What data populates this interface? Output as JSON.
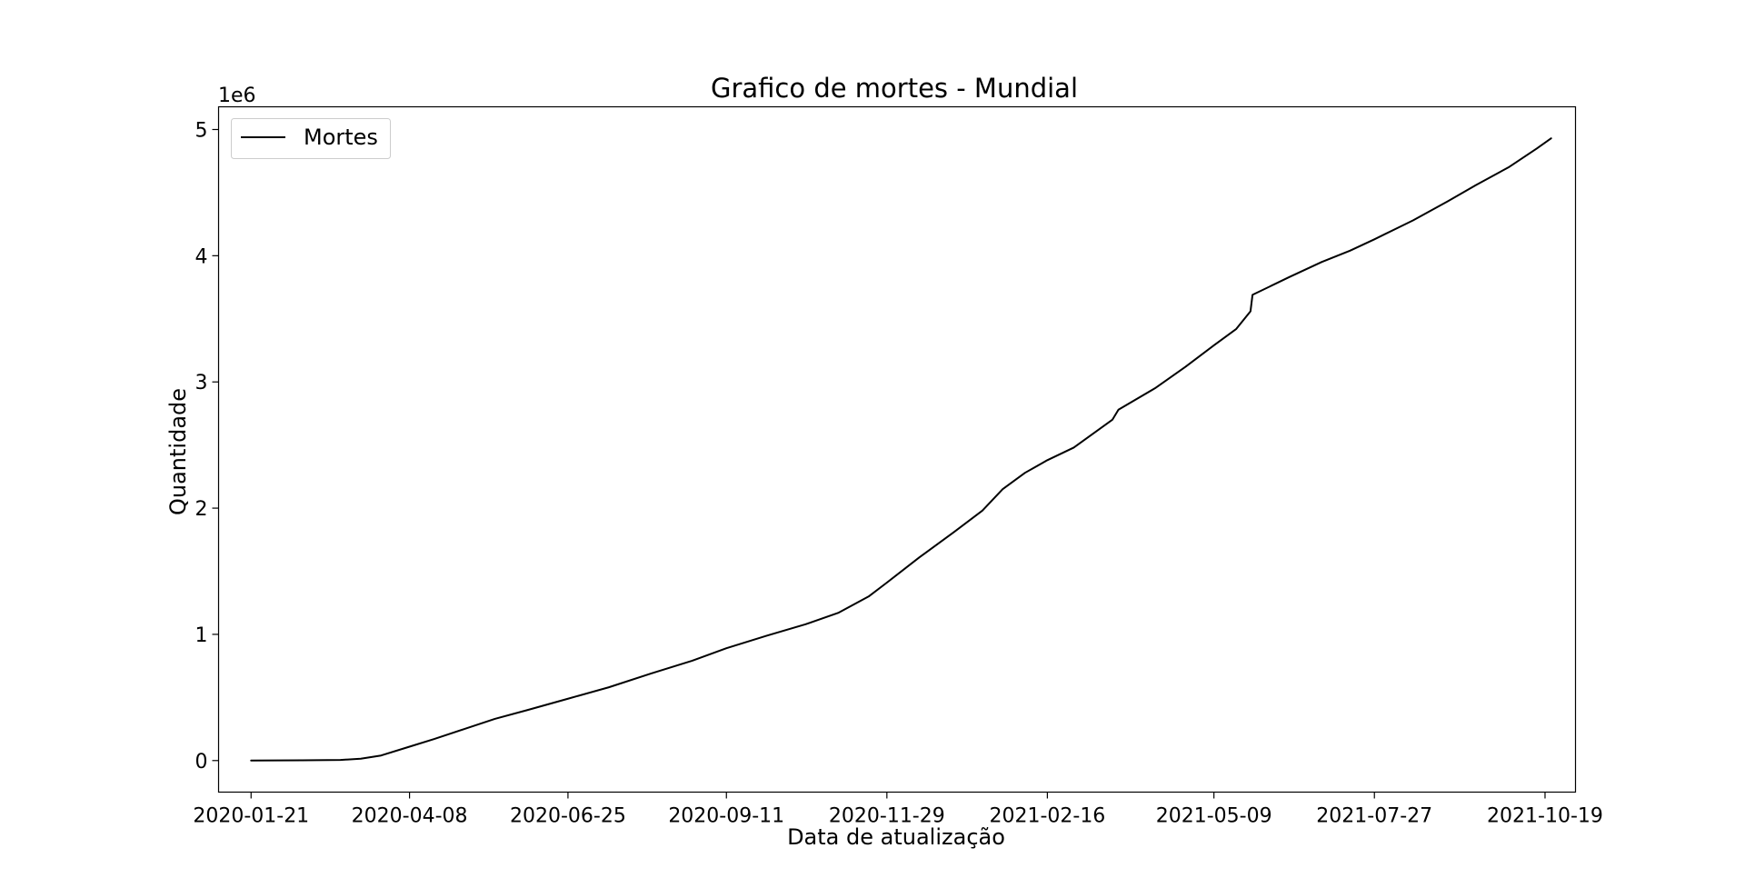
{
  "chart_data": {
    "type": "line",
    "title": "Grafico de mortes - Mundial",
    "xlabel": "Data de atualização",
    "ylabel": "Quantidade",
    "y_offset_label": "1e6",
    "x_tick_labels": [
      "2020-01-21",
      "2020-04-08",
      "2020-06-25",
      "2020-09-11",
      "2020-11-29",
      "2021-02-16",
      "2021-05-09",
      "2021-07-27",
      "2021-10-19"
    ],
    "y_tick_labels": [
      "0",
      "1",
      "2",
      "3",
      "4",
      "5"
    ],
    "y_ticks": [
      0,
      1000000,
      2000000,
      3000000,
      4000000,
      5000000
    ],
    "ylim": [
      -250000,
      5180000
    ],
    "xlim": [
      "2020-01-05",
      "2021-11-03"
    ],
    "grid": false,
    "legend_position": "upper-left",
    "series": [
      {
        "name": "Mortes",
        "color": "#000000",
        "x": [
          "2020-01-21",
          "2020-02-15",
          "2020-03-05",
          "2020-03-15",
          "2020-03-25",
          "2020-04-08",
          "2020-04-20",
          "2020-05-05",
          "2020-05-20",
          "2020-06-05",
          "2020-06-25",
          "2020-07-15",
          "2020-08-05",
          "2020-08-25",
          "2020-09-11",
          "2020-10-01",
          "2020-10-20",
          "2020-11-05",
          "2020-11-20",
          "2020-11-29",
          "2020-12-15",
          "2021-01-01",
          "2021-01-15",
          "2021-01-25",
          "2021-02-05",
          "2021-02-16",
          "2021-03-01",
          "2021-03-20",
          "2021-03-23",
          "2021-04-10",
          "2021-04-25",
          "2021-05-09",
          "2021-05-20",
          "2021-05-27",
          "2021-05-28",
          "2021-06-15",
          "2021-07-01",
          "2021-07-15",
          "2021-07-27",
          "2021-08-15",
          "2021-09-01",
          "2021-09-15",
          "2021-10-01",
          "2021-10-15",
          "2021-10-22"
        ],
        "y": [
          0,
          2000,
          5000,
          15000,
          40000,
          110000,
          170000,
          250000,
          330000,
          400000,
          490000,
          580000,
          690000,
          790000,
          890000,
          990000,
          1080000,
          1170000,
          1300000,
          1410000,
          1610000,
          1810000,
          1980000,
          2150000,
          2280000,
          2380000,
          2480000,
          2700000,
          2780000,
          2950000,
          3120000,
          3290000,
          3420000,
          3560000,
          3690000,
          3830000,
          3950000,
          4040000,
          4130000,
          4280000,
          4430000,
          4560000,
          4700000,
          4850000,
          4930000
        ]
      }
    ]
  }
}
